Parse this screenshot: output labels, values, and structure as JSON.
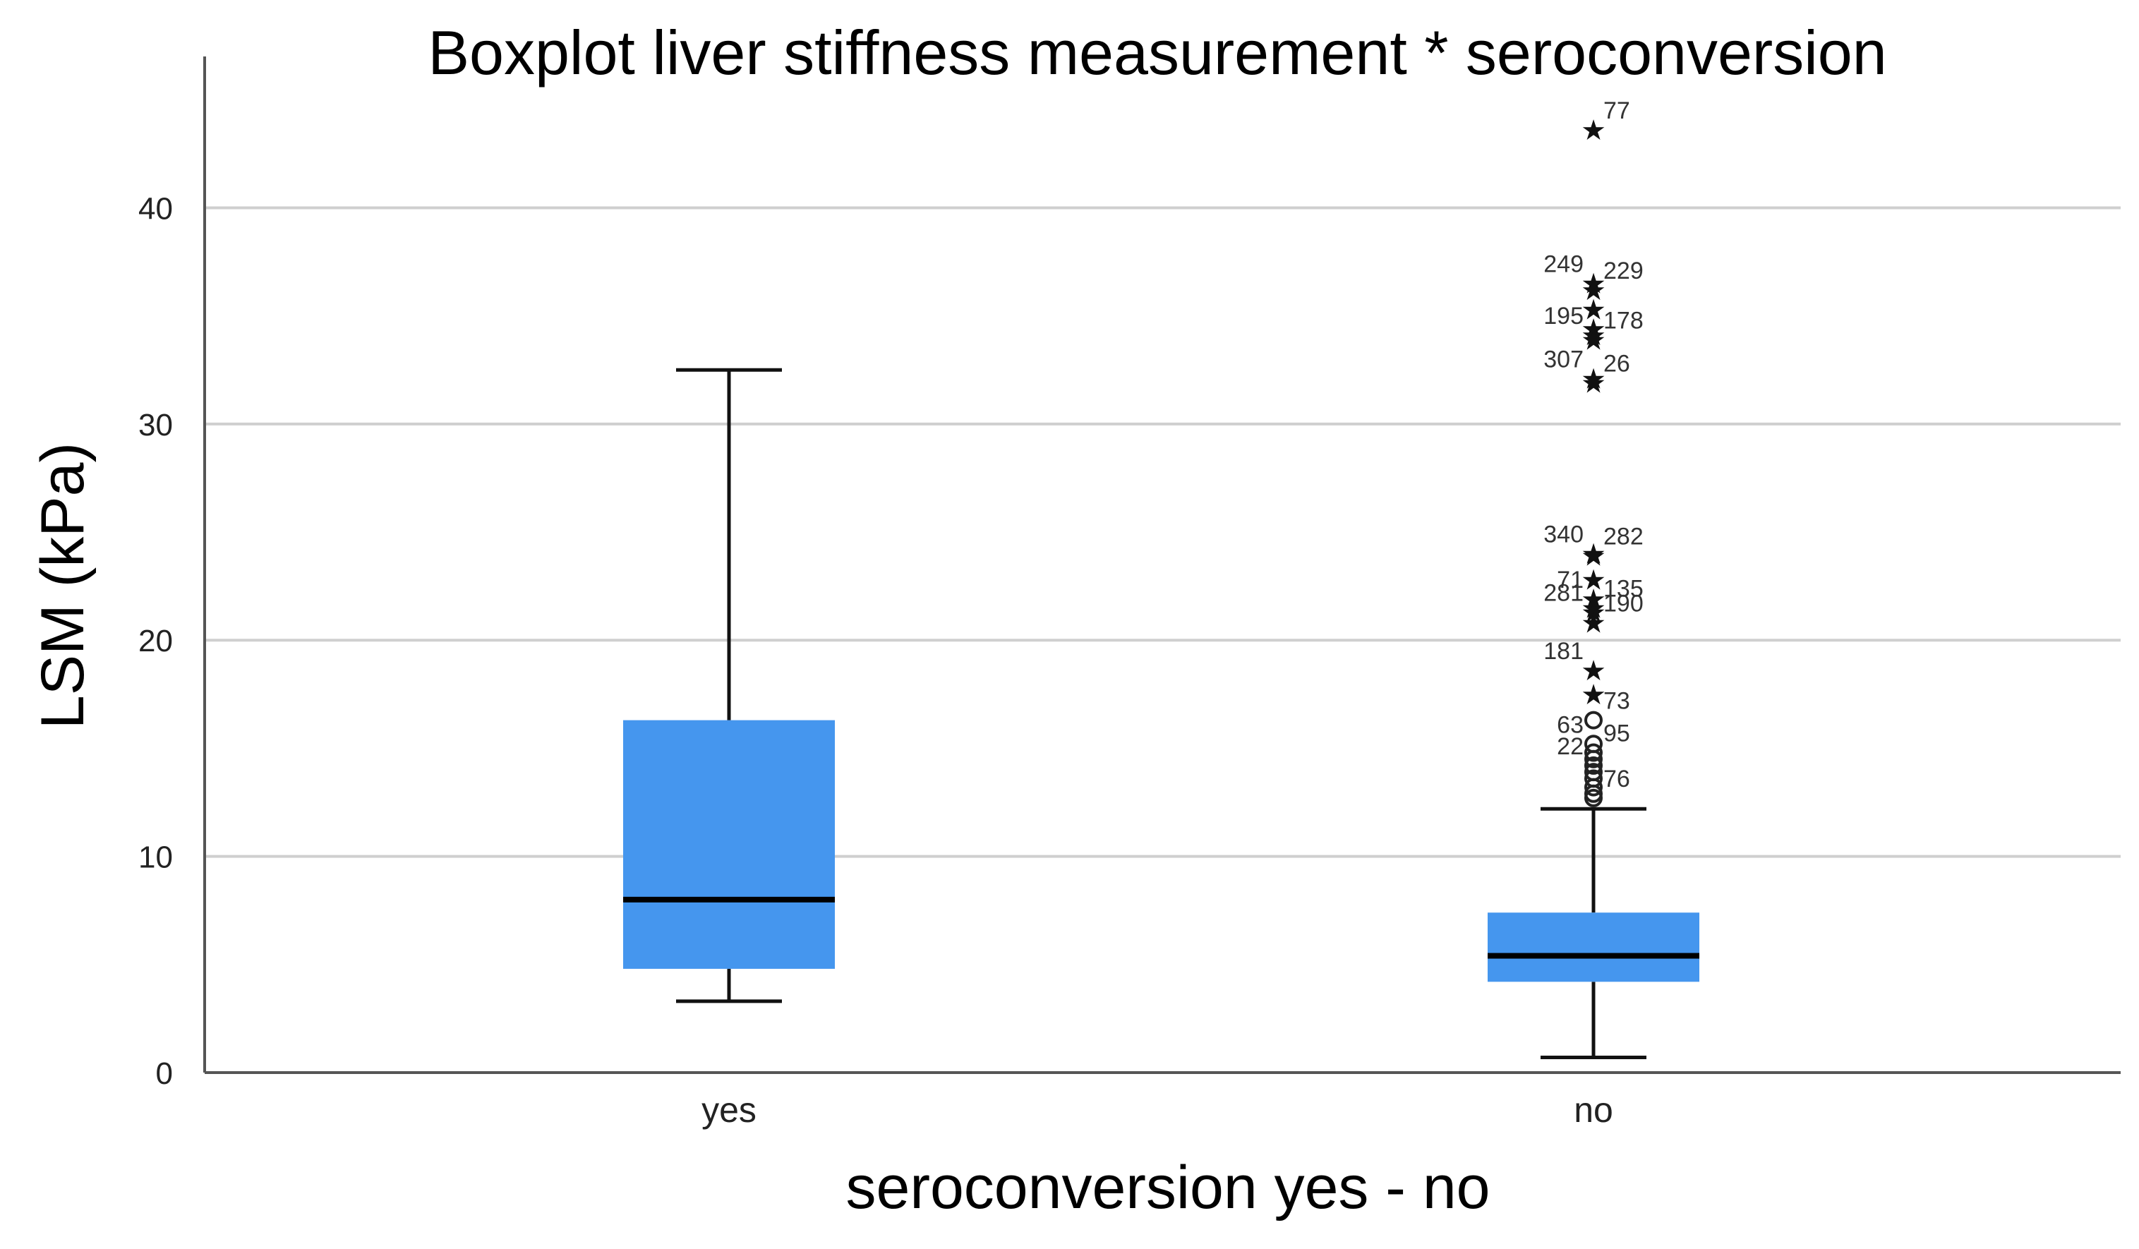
{
  "chart_data": {
    "type": "boxplot",
    "title": "Boxplot liver stiffness measurement * seroconversion",
    "xlabel": "seroconversion yes - no",
    "ylabel": "LSM (kPa)",
    "ylim": [
      0,
      47
    ],
    "yticks": [
      0,
      10,
      20,
      30,
      40
    ],
    "grid": true,
    "box_color": "#4596EE",
    "median_color": "#000000",
    "categories": [
      "yes",
      "no"
    ],
    "boxes": [
      {
        "category": "yes",
        "whisker_low": 3.3,
        "q1": 4.8,
        "median": 8.0,
        "q3": 16.3,
        "whisker_high": 32.5,
        "outliers": []
      },
      {
        "category": "no",
        "whisker_low": 0.7,
        "q1": 4.2,
        "median": 5.4,
        "q3": 7.4,
        "whisker_high": 12.2,
        "outliers": [
          {
            "id": "77",
            "value": 43.6,
            "kind": "extreme"
          },
          {
            "id": "249",
            "value": 36.5,
            "kind": "extreme"
          },
          {
            "id": "229",
            "value": 36.2,
            "kind": "extreme"
          },
          {
            "id": "",
            "value": 35.3,
            "kind": "extreme"
          },
          {
            "id": "",
            "value": 34.4,
            "kind": "extreme"
          },
          {
            "id": "195",
            "value": 34.1,
            "kind": "extreme"
          },
          {
            "id": "178",
            "value": 33.9,
            "kind": "extreme"
          },
          {
            "id": "307",
            "value": 32.1,
            "kind": "extreme"
          },
          {
            "id": "26",
            "value": 31.9,
            "kind": "extreme"
          },
          {
            "id": "340",
            "value": 24.0,
            "kind": "extreme"
          },
          {
            "id": "282",
            "value": 23.9,
            "kind": "extreme"
          },
          {
            "id": "",
            "value": 22.8,
            "kind": "extreme"
          },
          {
            "id": "71",
            "value": 21.9,
            "kind": "extreme"
          },
          {
            "id": "135",
            "value": 21.5,
            "kind": "extreme"
          },
          {
            "id": "281",
            "value": 21.3,
            "kind": "extreme"
          },
          {
            "id": "190",
            "value": 20.8,
            "kind": "extreme"
          },
          {
            "id": "181",
            "value": 18.6,
            "kind": "extreme"
          },
          {
            "id": "",
            "value": 17.5,
            "kind": "extreme"
          },
          {
            "id": "73",
            "value": 16.3,
            "kind": "outlier"
          },
          {
            "id": "63",
            "value": 15.2,
            "kind": "outlier"
          },
          {
            "id": "95",
            "value": 14.8,
            "kind": "outlier"
          },
          {
            "id": "",
            "value": 14.5,
            "kind": "outlier"
          },
          {
            "id": "22",
            "value": 14.2,
            "kind": "outlier"
          },
          {
            "id": "",
            "value": 13.9,
            "kind": "outlier"
          },
          {
            "id": "",
            "value": 13.6,
            "kind": "outlier"
          },
          {
            "id": "",
            "value": 13.2,
            "kind": "outlier"
          },
          {
            "id": "",
            "value": 12.9,
            "kind": "outlier"
          },
          {
            "id": "76",
            "value": 12.7,
            "kind": "outlier"
          }
        ]
      }
    ]
  }
}
